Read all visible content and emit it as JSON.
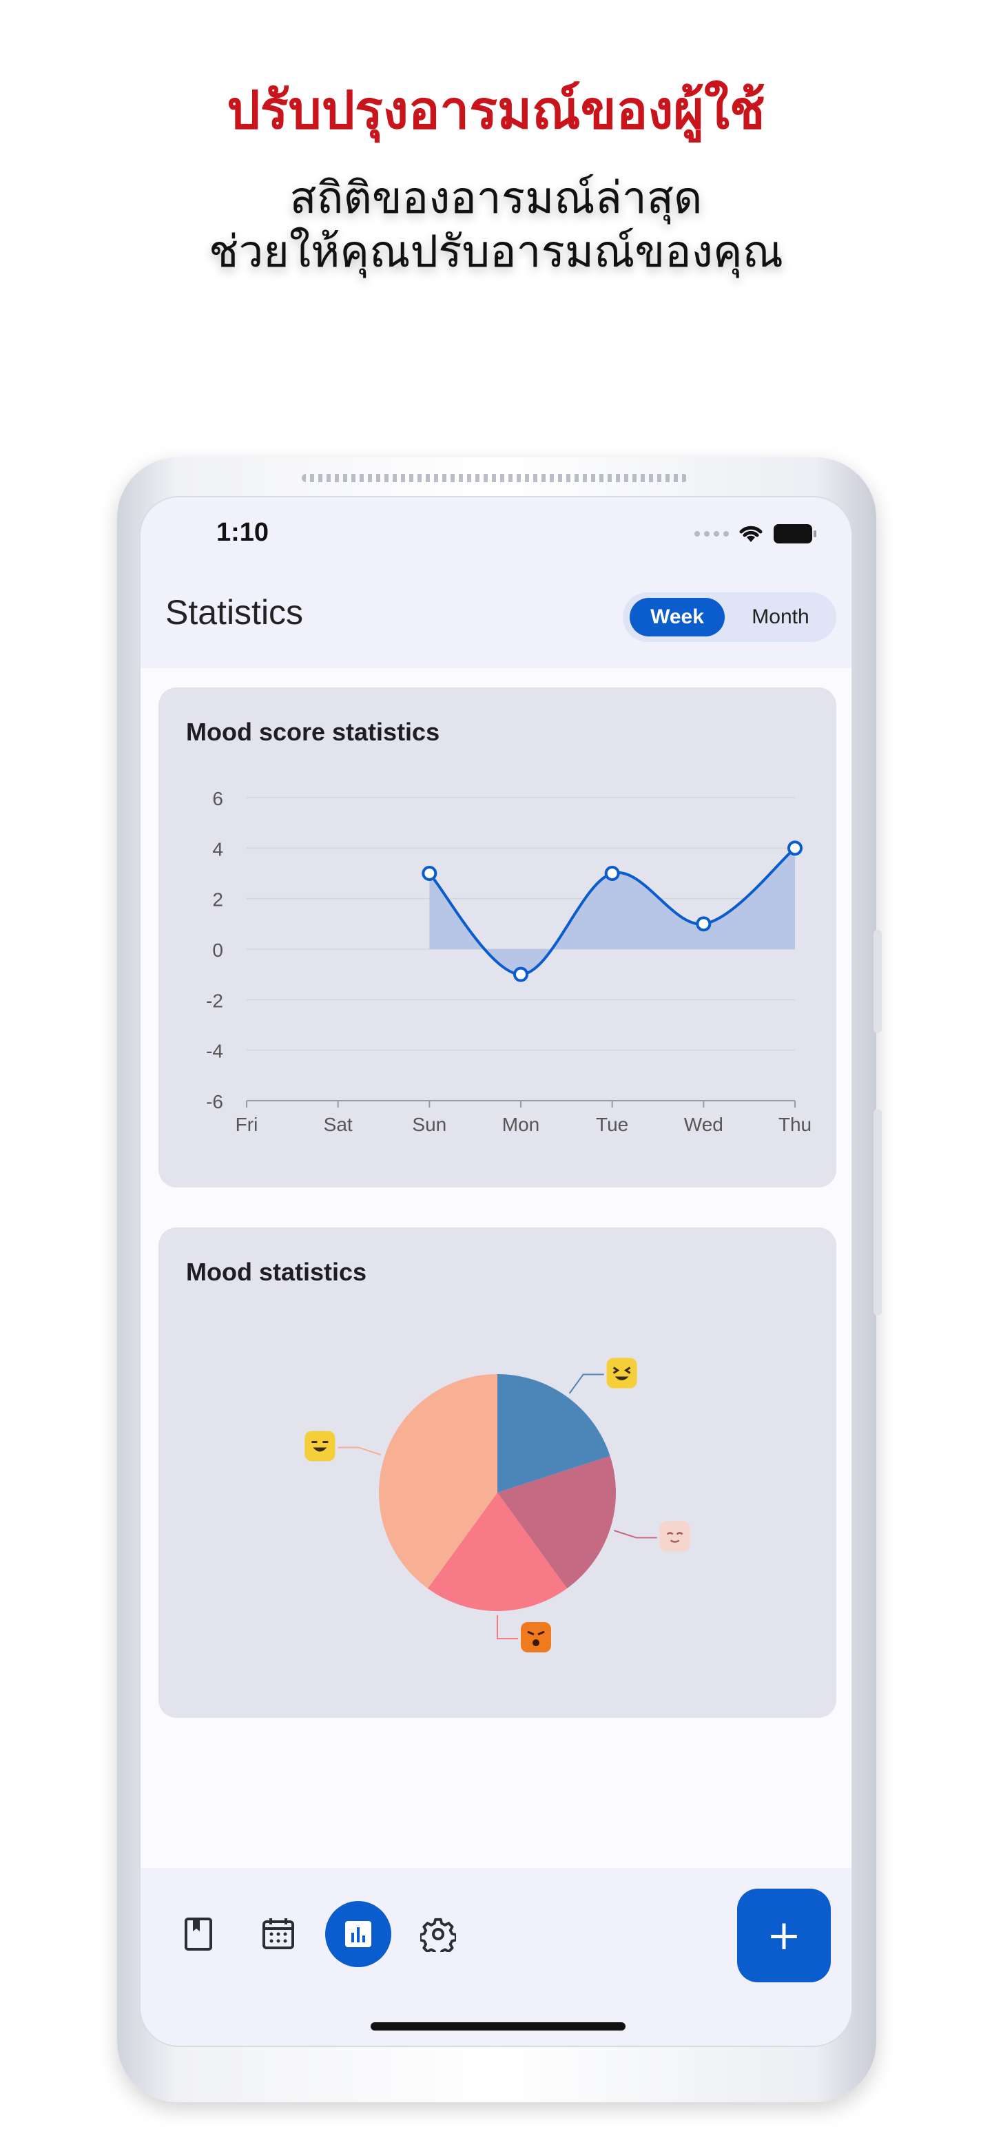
{
  "promo": {
    "headline": "ปรับปรุงอารมณ์ของผู้ใช้",
    "sub_line1": "สถิติของอารมณ์ล่าสุด",
    "sub_line2": "ช่วยให้คุณปรับอารมณ์ของคุณ"
  },
  "status_bar": {
    "time": "1:10",
    "icons": [
      "signal-icon",
      "wifi-icon",
      "battery-icon"
    ]
  },
  "header": {
    "title": "Statistics",
    "toggle": {
      "options": [
        "Week",
        "Month"
      ],
      "selected": "Week"
    }
  },
  "mood_score_card": {
    "title": "Mood score statistics"
  },
  "mood_card": {
    "title": "Mood statistics"
  },
  "chart_data": [
    {
      "type": "area",
      "title": "Mood score statistics",
      "categories": [
        "Fri",
        "Sat",
        "Sun",
        "Mon",
        "Tue",
        "Wed",
        "Thu"
      ],
      "series": [
        {
          "values": [
            null,
            null,
            3,
            -1,
            3,
            1,
            4
          ]
        }
      ],
      "yticks": [
        6,
        4,
        2,
        0,
        -2,
        -4,
        -6
      ],
      "ylim": [
        -6,
        6
      ],
      "grid": true,
      "line_color": "#0b5ccc",
      "fill_color": "#b4c4e6"
    },
    {
      "type": "pie",
      "title": "Mood statistics",
      "slices": [
        {
          "label": "laughing-face-icon",
          "value": 20,
          "color": "#4c86b8"
        },
        {
          "label": "blushing-face-icon",
          "value": 20,
          "color": "#c46a82"
        },
        {
          "label": "angry-face-icon",
          "value": 20,
          "color": "#f77a86"
        },
        {
          "label": "grinning-face-icon",
          "value": 40,
          "color": "#f8b095"
        }
      ]
    }
  ],
  "bottom_nav": {
    "items": [
      "journal-icon",
      "calendar-icon",
      "statistics-icon",
      "settings-icon"
    ],
    "active": "statistics-icon",
    "fab_label": "+"
  }
}
